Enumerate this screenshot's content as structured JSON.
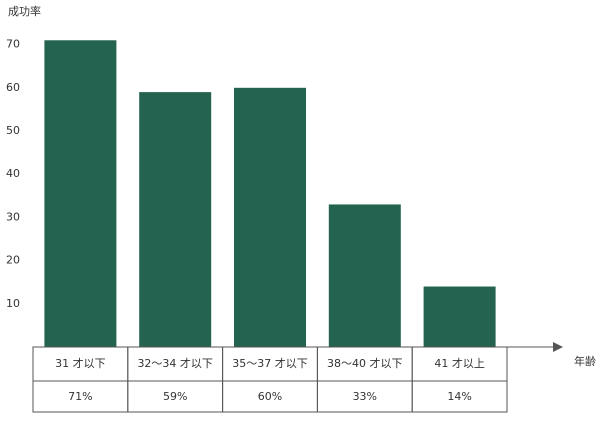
{
  "chart_data": {
    "type": "bar",
    "y_label": "成功率",
    "x_label": "年齢",
    "categories": [
      "31 才以下",
      "32～34 才以下",
      "35～37 才以下",
      "38～40 才以下",
      "41 才以上"
    ],
    "values": [
      71,
      59,
      60,
      33,
      14
    ],
    "value_labels": [
      "71%",
      "59%",
      "60%",
      "33%",
      "14%"
    ],
    "color": "#246350",
    "ylim": [
      0,
      75
    ],
    "yticks": [
      10,
      20,
      30,
      40,
      50,
      60,
      70
    ],
    "grid": false
  }
}
